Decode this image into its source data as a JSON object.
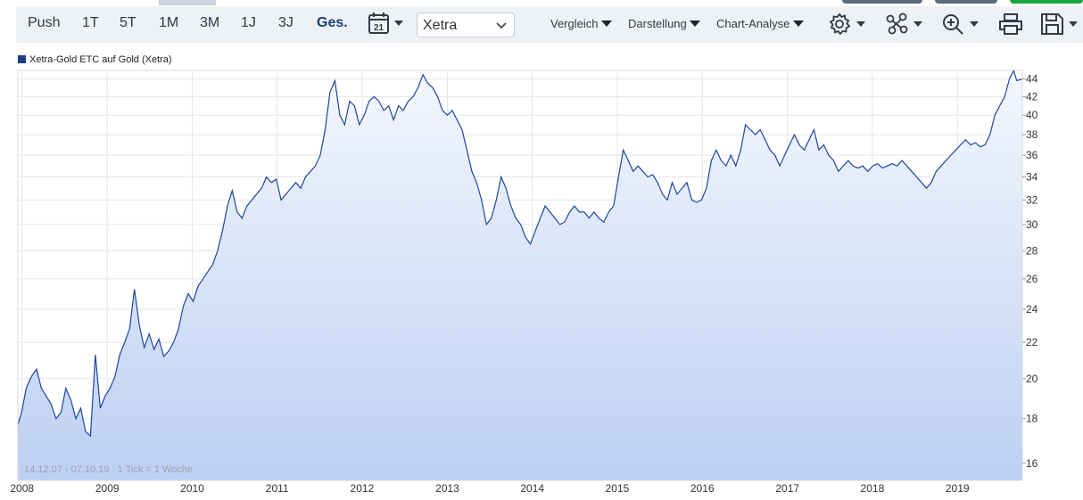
{
  "toolbar": {
    "range_tabs": [
      "Push",
      "1T",
      "5T",
      "1M",
      "3M",
      "1J",
      "3J",
      "Ges."
    ],
    "active_tab": "Ges.",
    "calendar_day": "21",
    "exchange": "Xetra",
    "menus": [
      "Vergleich",
      "Darstellung",
      "Chart-Analyse"
    ],
    "icons": [
      "settings-icon",
      "indicators-icon",
      "zoom-icon",
      "print-icon",
      "save-icon"
    ]
  },
  "footer": {
    "period": "14.12.07 - 07.10.19",
    "interval": "1 Tick = 1 Woche"
  },
  "colors": {
    "line": "#1f45a0",
    "fill_top": "#f4f7fd",
    "fill_bottom": "#bcd0f3",
    "grid": "#e2e5ea",
    "legend_swatch": "#1f3c88"
  },
  "chart_data": {
    "type": "area",
    "title": "",
    "xlabel": "",
    "ylabel": "",
    "y_scale": "log",
    "ylim": [
      15.3,
      45
    ],
    "yticks": [
      16,
      18,
      20,
      22,
      24,
      26,
      28,
      30,
      32,
      34,
      36,
      38,
      40,
      42,
      44
    ],
    "xlim": [
      "2007-12-14",
      "2019-10-07"
    ],
    "xticks": [
      {
        "date": "2008-01-01",
        "label": "2008"
      },
      {
        "date": "2009-01-01",
        "label": "2009"
      },
      {
        "date": "2010-01-01",
        "label": "2010"
      },
      {
        "date": "2011-01-01",
        "label": "2011"
      },
      {
        "date": "2012-01-01",
        "label": "2012"
      },
      {
        "date": "2013-01-01",
        "label": "2013"
      },
      {
        "date": "2014-01-01",
        "label": "2014"
      },
      {
        "date": "2015-01-01",
        "label": "2015"
      },
      {
        "date": "2016-01-01",
        "label": "2016"
      },
      {
        "date": "2017-01-01",
        "label": "2017"
      },
      {
        "date": "2018-01-01",
        "label": "2018"
      },
      {
        "date": "2019-01-01",
        "label": "2019"
      }
    ],
    "legend_position": "top-left",
    "series": [
      {
        "name": "Xetra-Gold ETC auf Gold  (Xetra)",
        "points": [
          [
            "2007-12-14",
            17.7
          ],
          [
            "2007-12-30",
            18.3
          ],
          [
            "2008-01-19",
            19.5
          ],
          [
            "2008-02-10",
            20.1
          ],
          [
            "2008-03-03",
            20.5
          ],
          [
            "2008-03-24",
            19.5
          ],
          [
            "2008-04-14",
            19.1
          ],
          [
            "2008-05-05",
            18.7
          ],
          [
            "2008-05-26",
            18.0
          ],
          [
            "2008-06-16",
            18.3
          ],
          [
            "2008-07-07",
            19.5
          ],
          [
            "2008-07-29",
            18.9
          ],
          [
            "2008-08-19",
            18.0
          ],
          [
            "2008-09-09",
            18.5
          ],
          [
            "2008-09-30",
            17.4
          ],
          [
            "2008-10-21",
            17.2
          ],
          [
            "2008-11-11",
            21.3
          ],
          [
            "2008-12-02",
            18.5
          ],
          [
            "2008-12-23",
            19.1
          ],
          [
            "2009-01-13",
            19.5
          ],
          [
            "2009-02-03",
            20.1
          ],
          [
            "2009-02-24",
            21.3
          ],
          [
            "2009-03-17",
            22.0
          ],
          [
            "2009-04-07",
            22.8
          ],
          [
            "2009-04-28",
            25.3
          ],
          [
            "2009-05-19",
            23.0
          ],
          [
            "2009-06-09",
            21.7
          ],
          [
            "2009-06-30",
            22.5
          ],
          [
            "2009-07-21",
            21.6
          ],
          [
            "2009-08-11",
            22.2
          ],
          [
            "2009-09-01",
            21.2
          ],
          [
            "2009-09-22",
            21.5
          ],
          [
            "2009-10-13",
            22.0
          ],
          [
            "2009-11-03",
            22.8
          ],
          [
            "2009-11-24",
            24.2
          ],
          [
            "2009-12-15",
            25.0
          ],
          [
            "2010-01-05",
            24.5
          ],
          [
            "2010-01-26",
            25.5
          ],
          [
            "2010-02-16",
            26.0
          ],
          [
            "2010-03-09",
            26.5
          ],
          [
            "2010-03-30",
            27.0
          ],
          [
            "2010-04-20",
            28.0
          ],
          [
            "2010-05-11",
            29.5
          ],
          [
            "2010-06-01",
            31.5
          ],
          [
            "2010-06-22",
            32.8
          ],
          [
            "2010-07-13",
            31.0
          ],
          [
            "2010-08-03",
            30.5
          ],
          [
            "2010-08-24",
            31.5
          ],
          [
            "2010-09-14",
            32.0
          ],
          [
            "2010-10-05",
            32.5
          ],
          [
            "2010-10-26",
            33.0
          ],
          [
            "2010-11-16",
            34.0
          ],
          [
            "2010-12-07",
            33.5
          ],
          [
            "2010-12-28",
            33.8
          ],
          [
            "2011-01-18",
            32.0
          ],
          [
            "2011-02-08",
            32.5
          ],
          [
            "2011-03-01",
            33.0
          ],
          [
            "2011-03-22",
            33.5
          ],
          [
            "2011-04-12",
            33.0
          ],
          [
            "2011-05-03",
            34.0
          ],
          [
            "2011-05-24",
            34.5
          ],
          [
            "2011-06-14",
            35.0
          ],
          [
            "2011-07-05",
            36.0
          ],
          [
            "2011-07-26",
            38.5
          ],
          [
            "2011-08-16",
            42.5
          ],
          [
            "2011-09-06",
            43.8
          ],
          [
            "2011-09-27",
            40.0
          ],
          [
            "2011-10-18",
            39.0
          ],
          [
            "2011-11-08",
            41.5
          ],
          [
            "2011-11-29",
            41.0
          ],
          [
            "2011-12-20",
            39.0
          ],
          [
            "2012-01-10",
            40.0
          ],
          [
            "2012-01-31",
            41.5
          ],
          [
            "2012-02-21",
            42.0
          ],
          [
            "2012-03-13",
            41.5
          ],
          [
            "2012-04-03",
            40.5
          ],
          [
            "2012-04-24",
            41.0
          ],
          [
            "2012-05-15",
            39.5
          ],
          [
            "2012-06-05",
            41.0
          ],
          [
            "2012-06-26",
            40.5
          ],
          [
            "2012-07-17",
            41.5
          ],
          [
            "2012-08-07",
            42.0
          ],
          [
            "2012-08-28",
            43.0
          ],
          [
            "2012-09-18",
            44.5
          ],
          [
            "2012-10-09",
            43.5
          ],
          [
            "2012-10-30",
            43.0
          ],
          [
            "2012-11-20",
            42.0
          ],
          [
            "2012-12-11",
            40.5
          ],
          [
            "2013-01-01",
            40.0
          ],
          [
            "2013-01-22",
            40.5
          ],
          [
            "2013-02-12",
            39.5
          ],
          [
            "2013-03-05",
            38.5
          ],
          [
            "2013-03-26",
            36.5
          ],
          [
            "2013-04-16",
            34.5
          ],
          [
            "2013-05-07",
            33.5
          ],
          [
            "2013-05-28",
            32.0
          ],
          [
            "2013-06-18",
            30.0
          ],
          [
            "2013-07-09",
            30.5
          ],
          [
            "2013-07-30",
            32.0
          ],
          [
            "2013-08-20",
            34.0
          ],
          [
            "2013-09-10",
            33.0
          ],
          [
            "2013-10-01",
            31.5
          ],
          [
            "2013-10-22",
            30.5
          ],
          [
            "2013-11-12",
            30.0
          ],
          [
            "2013-12-03",
            29.0
          ],
          [
            "2013-12-24",
            28.5
          ],
          [
            "2014-01-14",
            29.5
          ],
          [
            "2014-02-04",
            30.5
          ],
          [
            "2014-02-25",
            31.5
          ],
          [
            "2014-03-18",
            31.0
          ],
          [
            "2014-04-08",
            30.5
          ],
          [
            "2014-04-29",
            30.0
          ],
          [
            "2014-05-20",
            30.2
          ],
          [
            "2014-06-10",
            31.0
          ],
          [
            "2014-07-01",
            31.5
          ],
          [
            "2014-07-22",
            31.0
          ],
          [
            "2014-08-12",
            31.0
          ],
          [
            "2014-09-02",
            30.5
          ],
          [
            "2014-09-23",
            31.0
          ],
          [
            "2014-10-14",
            30.5
          ],
          [
            "2014-11-04",
            30.2
          ],
          [
            "2014-11-25",
            31.0
          ],
          [
            "2014-12-16",
            31.5
          ],
          [
            "2015-01-06",
            34.0
          ],
          [
            "2015-01-27",
            36.5
          ],
          [
            "2015-02-17",
            35.5
          ],
          [
            "2015-03-10",
            34.5
          ],
          [
            "2015-03-31",
            35.0
          ],
          [
            "2015-04-21",
            34.5
          ],
          [
            "2015-05-12",
            34.0
          ],
          [
            "2015-06-02",
            34.2
          ],
          [
            "2015-06-23",
            33.5
          ],
          [
            "2015-07-14",
            32.5
          ],
          [
            "2015-08-04",
            32.0
          ],
          [
            "2015-08-25",
            33.5
          ],
          [
            "2015-09-15",
            32.5
          ],
          [
            "2015-10-06",
            33.0
          ],
          [
            "2015-10-27",
            33.5
          ],
          [
            "2015-11-17",
            32.0
          ],
          [
            "2015-12-08",
            31.8
          ],
          [
            "2015-12-29",
            32.0
          ],
          [
            "2016-01-19",
            33.0
          ],
          [
            "2016-02-09",
            35.5
          ],
          [
            "2016-03-01",
            36.5
          ],
          [
            "2016-03-22",
            35.5
          ],
          [
            "2016-04-12",
            35.0
          ],
          [
            "2016-05-03",
            36.0
          ],
          [
            "2016-05-24",
            35.0
          ],
          [
            "2016-06-14",
            36.5
          ],
          [
            "2016-07-05",
            39.0
          ],
          [
            "2016-07-26",
            38.5
          ],
          [
            "2016-08-16",
            38.0
          ],
          [
            "2016-09-06",
            38.5
          ],
          [
            "2016-09-27",
            37.5
          ],
          [
            "2016-10-18",
            36.5
          ],
          [
            "2016-11-08",
            36.0
          ],
          [
            "2016-11-29",
            35.0
          ],
          [
            "2016-12-20",
            36.0
          ],
          [
            "2017-01-10",
            37.0
          ],
          [
            "2017-01-31",
            38.0
          ],
          [
            "2017-02-21",
            37.0
          ],
          [
            "2017-03-14",
            36.5
          ],
          [
            "2017-04-04",
            37.5
          ],
          [
            "2017-04-25",
            38.5
          ],
          [
            "2017-05-16",
            36.5
          ],
          [
            "2017-06-06",
            37.0
          ],
          [
            "2017-06-27",
            36.0
          ],
          [
            "2017-07-18",
            35.5
          ],
          [
            "2017-08-08",
            34.5
          ],
          [
            "2017-08-29",
            35.0
          ],
          [
            "2017-09-19",
            35.5
          ],
          [
            "2017-10-10",
            35.0
          ],
          [
            "2017-10-31",
            34.8
          ],
          [
            "2017-11-21",
            35.0
          ],
          [
            "2017-12-12",
            34.5
          ],
          [
            "2018-01-02",
            35.0
          ],
          [
            "2018-01-23",
            35.2
          ],
          [
            "2018-02-13",
            34.8
          ],
          [
            "2018-03-06",
            35.0
          ],
          [
            "2018-03-27",
            35.2
          ],
          [
            "2018-04-17",
            35.0
          ],
          [
            "2018-05-08",
            35.5
          ],
          [
            "2018-05-29",
            35.0
          ],
          [
            "2018-06-19",
            34.5
          ],
          [
            "2018-07-10",
            34.0
          ],
          [
            "2018-07-31",
            33.5
          ],
          [
            "2018-08-21",
            33.0
          ],
          [
            "2018-09-11",
            33.5
          ],
          [
            "2018-10-02",
            34.5
          ],
          [
            "2018-10-23",
            35.0
          ],
          [
            "2018-11-13",
            35.5
          ],
          [
            "2018-12-04",
            36.0
          ],
          [
            "2018-12-25",
            36.5
          ],
          [
            "2019-01-15",
            37.0
          ],
          [
            "2019-02-05",
            37.5
          ],
          [
            "2019-02-26",
            37.0
          ],
          [
            "2019-03-19",
            37.2
          ],
          [
            "2019-04-09",
            36.8
          ],
          [
            "2019-04-30",
            37.0
          ],
          [
            "2019-05-21",
            38.0
          ],
          [
            "2019-06-11",
            40.0
          ],
          [
            "2019-07-02",
            41.0
          ],
          [
            "2019-07-23",
            42.0
          ],
          [
            "2019-08-13",
            44.0
          ],
          [
            "2019-08-31",
            45.0
          ],
          [
            "2019-09-13",
            43.8
          ],
          [
            "2019-10-07",
            44.0
          ]
        ]
      }
    ]
  }
}
